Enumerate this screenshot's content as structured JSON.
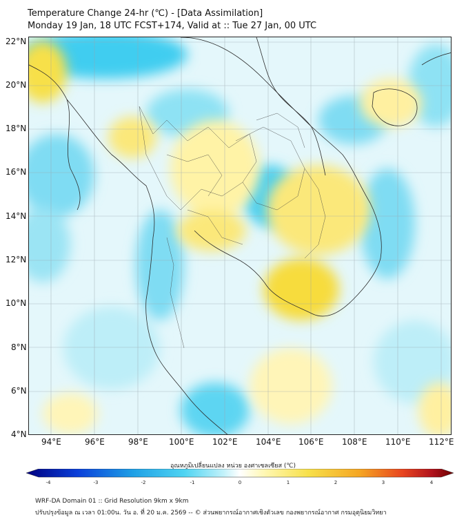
{
  "header": {
    "title_line1": "Temperature Change 24-hr (℃) - [Data Assimilation]",
    "title_line2": "Monday 19 Jan, 18 UTC FCST+174, Valid at :: Tue 27 Jan, 00 UTC"
  },
  "map": {
    "lat_labels": [
      "22°N",
      "20°N",
      "18°N",
      "16°N",
      "14°N",
      "12°N",
      "10°N",
      "8°N",
      "6°N",
      "4°N"
    ],
    "lon_labels": [
      "94°E",
      "96°E",
      "98°E",
      "100°E",
      "102°E",
      "104°E",
      "106°E",
      "108°E",
      "110°E",
      "112°E"
    ],
    "lat_range": [
      4,
      22
    ],
    "lon_range": [
      93,
      112.6
    ]
  },
  "colorbar": {
    "label": "อุณหภูมิเปลี่ยนแปลง หน่วย องศาเซลเซียส (℃)",
    "ticks": [
      "-4",
      "-3",
      "-2",
      "-1",
      "0",
      "1",
      "2",
      "3",
      "4"
    ],
    "range": [
      -4,
      4
    ],
    "colors": [
      "#00007f",
      "#0a3fd9",
      "#1ea0e6",
      "#4fd4f2",
      "#bff1fa",
      "#ffffff",
      "#fff7b0",
      "#f7e04a",
      "#f5a623",
      "#e8451f",
      "#b0121c",
      "#6b0000"
    ]
  },
  "footer": {
    "line1": "WRF-DA Domain 01 :: Grid Resolution 9km x 9km",
    "line2": "ปรับปรุงข้อมูล ณ เวลา 01:00น. วัน อ. ที่ 20 ม.ค. 2569 -- © ส่วนพยากรณ์อากาศเชิงตัวเลข กองพยากรณ์อากาศ กรมอุตุนิยมวิทยา"
  }
}
